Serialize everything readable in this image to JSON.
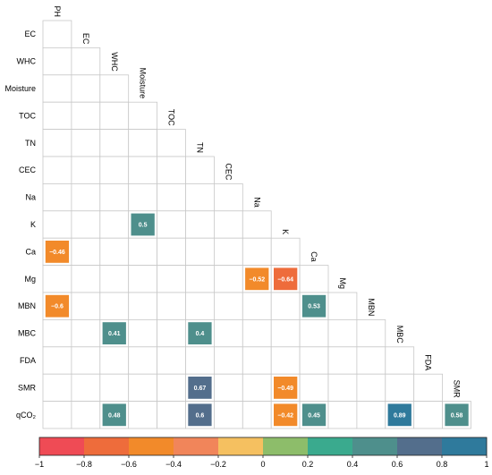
{
  "chart_data": {
    "type": "heatmap",
    "title": "",
    "variables": [
      "PH",
      "EC",
      "WHC",
      "Moisture",
      "TOC",
      "TN",
      "CEC",
      "Na",
      "K",
      "Ca",
      "Mg",
      "MBN",
      "MBC",
      "FDA",
      "SMR",
      "qCO₂"
    ],
    "row_labels": [
      "EC",
      "WHC",
      "Moisture",
      "TOC",
      "TN",
      "CEC",
      "Na",
      "K",
      "Ca",
      "Mg",
      "MBN",
      "MBC",
      "FDA",
      "SMR",
      "qCO₂"
    ],
    "column_labels": [
      "PH",
      "EC",
      "WHC",
      "Moisture",
      "TOC",
      "TN",
      "CEC",
      "Na",
      "K",
      "Ca",
      "Mg",
      "MBN",
      "MBC",
      "FDA",
      "SMR"
    ],
    "layout": "lower-triangular",
    "cells": [
      {
        "row": "K",
        "col": "Moisture",
        "value": 0.5
      },
      {
        "row": "Ca",
        "col": "PH",
        "value": -0.46
      },
      {
        "row": "Mg",
        "col": "Na",
        "value": -0.52
      },
      {
        "row": "Mg",
        "col": "K",
        "value": -0.64
      },
      {
        "row": "MBN",
        "col": "PH",
        "value": -0.6
      },
      {
        "row": "MBN",
        "col": "Ca",
        "value": 0.53
      },
      {
        "row": "MBC",
        "col": "WHC",
        "value": 0.41
      },
      {
        "row": "MBC",
        "col": "TN",
        "value": 0.4
      },
      {
        "row": "SMR",
        "col": "TN",
        "value": 0.67
      },
      {
        "row": "SMR",
        "col": "K",
        "value": -0.49
      },
      {
        "row": "qCO₂",
        "col": "WHC",
        "value": 0.48
      },
      {
        "row": "qCO₂",
        "col": "TN",
        "value": 0.6
      },
      {
        "row": "qCO₂",
        "col": "K",
        "value": -0.42
      },
      {
        "row": "qCO₂",
        "col": "Ca",
        "value": 0.45
      },
      {
        "row": "qCO₂",
        "col": "MBC",
        "value": 0.89
      },
      {
        "row": "qCO₂",
        "col": "SMR",
        "value": 0.58
      }
    ],
    "colorbar": {
      "range": [
        -1,
        1
      ],
      "ticks": [
        "−1",
        "−0.8",
        "−0.6",
        "−0.4",
        "−0.2",
        "0",
        "0.2",
        "0.4",
        "0.6",
        "0.8",
        "1"
      ],
      "bins": [
        "#ef4b55",
        "#ee6c3b",
        "#f28a2a",
        "#f1855a",
        "#f5c060",
        "#8dbd6a",
        "#3aaa8e",
        "#4e8f8c",
        "#536e8c",
        "#2f7a9c"
      ]
    },
    "grid": true,
    "legend": "bottom"
  }
}
